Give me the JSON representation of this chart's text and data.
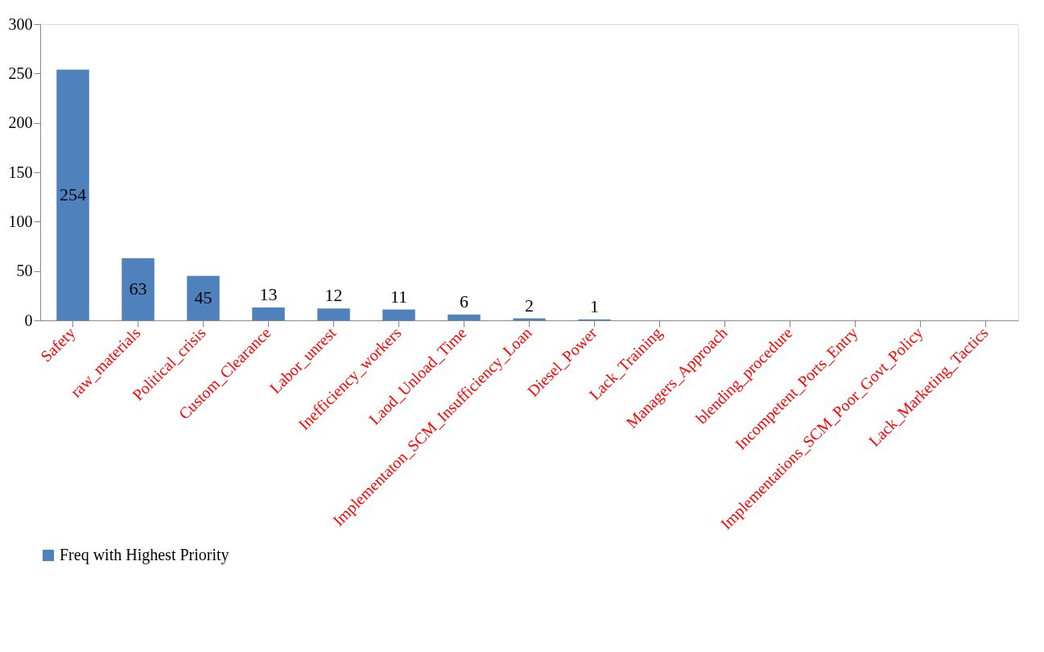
{
  "chart_data": {
    "type": "bar",
    "categories": [
      "Safety",
      "raw_materials",
      "Political_crisis",
      "Custom_Clearance",
      "Labor_unrest",
      "Inefficiency_workers",
      "Laod_Unload_Time",
      "Implementaton_SCM_Insufficiency_Loan",
      "Diesel_Power",
      "Lack_Training",
      "Managers_Approach",
      "blending_procedure",
      "Incompetent_Ports_Entry",
      "Implementations_SCM_Poor_Govt_Policy",
      "Lack_Marketing_Tactics"
    ],
    "series": [
      {
        "name": "Freq with Highest Priority",
        "color": "#4f81bd",
        "values": [
          254,
          63,
          45,
          13,
          12,
          11,
          6,
          2,
          1,
          0,
          0,
          0,
          0,
          0,
          0
        ],
        "value_labels": [
          "254",
          "63",
          "45",
          "13",
          "12",
          "11",
          "6",
          "2",
          "1",
          null,
          null,
          null,
          null,
          null,
          null
        ]
      }
    ],
    "ylim": [
      0,
      300
    ],
    "yticks": [
      0,
      50,
      100,
      150,
      200,
      250,
      300
    ],
    "grid": false,
    "legend": "bottom"
  }
}
